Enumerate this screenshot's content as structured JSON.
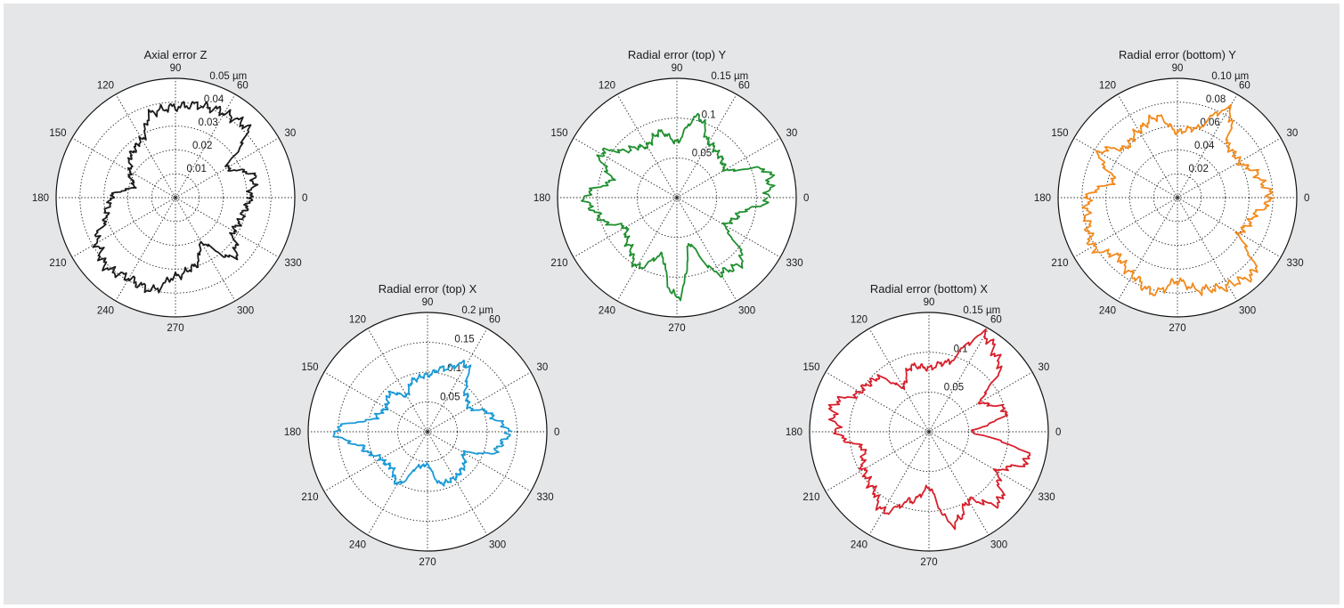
{
  "chart_data": [
    {
      "type": "polar",
      "title": "Axial error Z",
      "unit": "µm",
      "rmax": 0.05,
      "ring_values": [
        0.01,
        0.02,
        0.03,
        0.04,
        0.05
      ],
      "ring_labels": [
        "0.01",
        "0.02",
        "0.03",
        "0.04",
        "0.05 µm"
      ],
      "angle_labels": [
        "0",
        "30",
        "60",
        "90",
        "120",
        "150",
        "180",
        "210",
        "240",
        "270",
        "300",
        "330"
      ],
      "color": "#1a1a1a",
      "series": [
        {
          "theta": [
            0,
            15,
            30,
            45,
            60,
            75,
            90,
            105,
            120,
            135,
            150,
            165,
            180,
            195,
            210,
            225,
            240,
            255,
            270,
            285,
            300,
            315,
            330,
            345
          ],
          "r": [
            0.031,
            0.034,
            0.025,
            0.042,
            0.041,
            0.04,
            0.038,
            0.037,
            0.028,
            0.026,
            0.022,
            0.018,
            0.027,
            0.03,
            0.038,
            0.041,
            0.039,
            0.04,
            0.033,
            0.03,
            0.022,
            0.035,
            0.028,
            0.029
          ]
        }
      ]
    },
    {
      "type": "polar",
      "title": "Radial error (top) X",
      "unit": "µm",
      "rmax": 0.2,
      "ring_values": [
        0.05,
        0.1,
        0.15,
        0.2
      ],
      "ring_labels": [
        "0.05",
        "0.1",
        "0.15",
        "0.2 µm"
      ],
      "angle_labels": [
        "0",
        "30",
        "60",
        "90",
        "120",
        "150",
        "180",
        "210",
        "240",
        "270",
        "300",
        "330"
      ],
      "color": "#1b9ad6",
      "series": [
        {
          "theta": [
            0,
            15,
            30,
            45,
            60,
            75,
            90,
            105,
            120,
            135,
            150,
            165,
            180,
            195,
            210,
            225,
            240,
            255,
            270,
            285,
            300,
            315,
            330,
            345
          ],
          "r": [
            0.135,
            0.11,
            0.08,
            0.09,
            0.13,
            0.11,
            0.095,
            0.09,
            0.07,
            0.09,
            0.08,
            0.09,
            0.155,
            0.11,
            0.09,
            0.085,
            0.1,
            0.06,
            0.055,
            0.09,
            0.09,
            0.085,
            0.07,
            0.12
          ]
        }
      ]
    },
    {
      "type": "polar",
      "title": "Radial error (top) Y",
      "unit": "µm",
      "rmax": 0.15,
      "ring_values": [
        0.05,
        0.1,
        0.15
      ],
      "ring_labels": [
        "0.05",
        "0.1",
        "0.15 µm"
      ],
      "angle_labels": [
        "0",
        "30",
        "60",
        "90",
        "120",
        "150",
        "180",
        "210",
        "240",
        "270",
        "300",
        "330"
      ],
      "color": "#1f8f2f",
      "series": [
        {
          "theta": [
            0,
            15,
            30,
            45,
            60,
            75,
            90,
            105,
            120,
            135,
            150,
            165,
            180,
            195,
            210,
            225,
            240,
            255,
            270,
            285,
            300,
            315,
            330,
            345
          ],
          "r": [
            0.115,
            0.12,
            0.07,
            0.075,
            0.08,
            0.105,
            0.07,
            0.085,
            0.075,
            0.085,
            0.11,
            0.085,
            0.115,
            0.1,
            0.075,
            0.085,
            0.1,
            0.075,
            0.125,
            0.06,
            0.11,
            0.115,
            0.07,
            0.08
          ]
        }
      ]
    },
    {
      "type": "polar",
      "title": "Radial error (bottom) X",
      "unit": "µm",
      "rmax": 0.15,
      "ring_values": [
        0.05,
        0.1,
        0.15
      ],
      "ring_labels": [
        "0.05",
        "0.1",
        "0.15 µm"
      ],
      "angle_labels": [
        "0",
        "30",
        "60",
        "90",
        "120",
        "150",
        "180",
        "210",
        "240",
        "270",
        "300",
        "330"
      ],
      "color": "#d81f2b",
      "series": [
        {
          "theta": [
            0,
            15,
            30,
            45,
            60,
            75,
            90,
            105,
            120,
            135,
            150,
            165,
            180,
            195,
            210,
            225,
            240,
            255,
            270,
            285,
            300,
            315,
            330,
            345
          ],
          "r": [
            0.055,
            0.1,
            0.075,
            0.125,
            0.14,
            0.09,
            0.08,
            0.085,
            0.065,
            0.095,
            0.1,
            0.125,
            0.115,
            0.085,
            0.095,
            0.1,
            0.115,
            0.09,
            0.07,
            0.12,
            0.1,
            0.125,
            0.1,
            0.13
          ]
        }
      ]
    },
    {
      "type": "polar",
      "title": "Radial error (bottom) Y",
      "unit": "µm",
      "rmax": 0.1,
      "ring_values": [
        0.02,
        0.04,
        0.06,
        0.08,
        0.1
      ],
      "ring_labels": [
        "0.02",
        "0.04",
        "0.06",
        "0.08",
        "0.10 µm"
      ],
      "angle_labels": [
        "0",
        "30",
        "60",
        "90",
        "120",
        "150",
        "180",
        "210",
        "240",
        "270",
        "300",
        "330"
      ],
      "color": "#f28a1c",
      "series": [
        {
          "theta": [
            0,
            15,
            30,
            45,
            60,
            75,
            90,
            105,
            120,
            135,
            150,
            165,
            180,
            195,
            210,
            225,
            240,
            255,
            270,
            285,
            300,
            315,
            330,
            345
          ],
          "r": [
            0.078,
            0.07,
            0.06,
            0.06,
            0.085,
            0.06,
            0.055,
            0.07,
            0.065,
            0.06,
            0.075,
            0.055,
            0.075,
            0.078,
            0.082,
            0.07,
            0.075,
            0.082,
            0.07,
            0.08,
            0.085,
            0.09,
            0.06,
            0.065
          ]
        }
      ]
    }
  ]
}
